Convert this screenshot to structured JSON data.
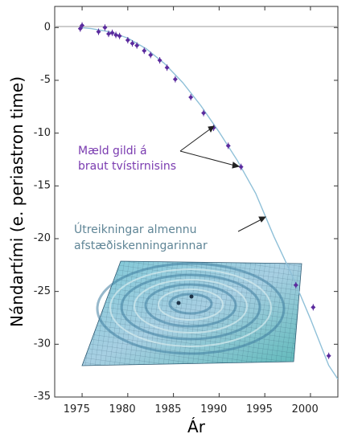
{
  "chart_data": {
    "type": "scatter",
    "xlabel": "Ár",
    "ylabel": "Nándartími (e. periastron time)",
    "xlim": [
      1972,
      2003
    ],
    "ylim": [
      -35,
      2
    ],
    "xticks": [
      "1975",
      "1980",
      "1985",
      "1990",
      "1995",
      "2000"
    ],
    "yticks": [
      "0",
      "-5",
      "-10",
      "-15",
      "-20",
      "-25",
      "-30",
      "-35"
    ],
    "grid": false,
    "zero_line": true,
    "colors": {
      "points": "#5b2b9e",
      "curve": "#8fc0d8",
      "measured_label": "#7a3bb0",
      "prediction_label": "#5f8596",
      "zero_line": "#9a9a9a",
      "frame": "#333333"
    },
    "series": [
      {
        "kind": "points",
        "x": [
          1974.8,
          1975.0,
          1976.8,
          1977.5,
          1977.9,
          1978.3,
          1978.7,
          1979.1,
          1980.0,
          1980.5,
          1981.0,
          1981.8,
          1982.5,
          1983.5,
          1984.3,
          1985.2,
          1986.9,
          1988.3,
          1989.4,
          1991.0,
          1992.4,
          1998.4,
          2000.3,
          2002.0
        ],
        "y": [
          -0.1,
          0.2,
          -0.4,
          0.0,
          -0.6,
          -0.5,
          -0.7,
          -0.8,
          -1.2,
          -1.5,
          -1.7,
          -2.2,
          -2.6,
          -3.1,
          -3.8,
          -4.9,
          -6.6,
          -8.1,
          -9.5,
          -11.2,
          -13.2,
          -24.4,
          -26.5,
          -31.1
        ]
      },
      {
        "kind": "curve",
        "x": [
          1974.8,
          1976,
          1978,
          1980,
          1982,
          1984,
          1986,
          1988,
          1990,
          1992,
          1994,
          1996,
          1998,
          2000,
          2002,
          2003
        ],
        "y": [
          0.0,
          -0.1,
          -0.4,
          -1.0,
          -2.0,
          -3.4,
          -5.2,
          -7.4,
          -9.9,
          -12.6,
          -15.7,
          -19.8,
          -23.5,
          -27.6,
          -32.0,
          -33.3
        ]
      }
    ],
    "annotations": {
      "measured": [
        "Mæld gildi á",
        "braut tvístirnisins"
      ],
      "prediction": [
        "Útreikningar almennu",
        "afstæðiskenningarinnar"
      ]
    }
  }
}
